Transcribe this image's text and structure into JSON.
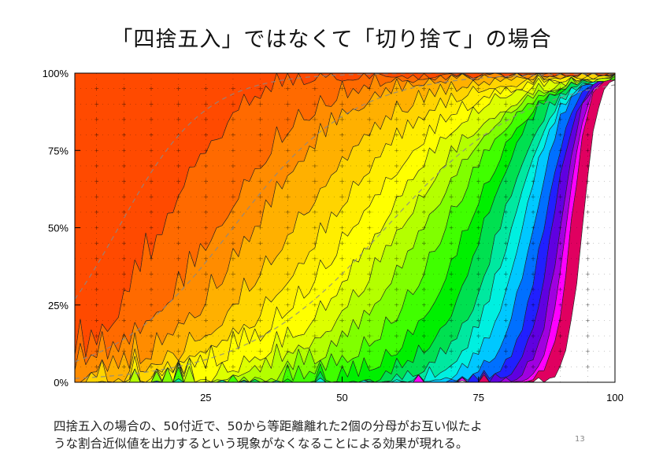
{
  "slide": {
    "title": "「四捨五入」ではなくて「切り捨て」の場合",
    "caption_line1": "四捨五入の場合の、50付近で、50から等距離離れた2個の分母がお互い似たよ",
    "caption_line2": "うな割合近似値を出力するという現象がなくなることによる効果が現れる。",
    "page_number": "13"
  },
  "chart_data": {
    "type": "area",
    "title": "",
    "xlabel": "",
    "ylabel": "",
    "x_ticks": [
      25,
      50,
      75,
      100
    ],
    "y_ticks": [
      "0%",
      "25%",
      "50%",
      "75%",
      "100%"
    ],
    "xlim": [
      1,
      100
    ],
    "ylim": [
      0,
      100
    ],
    "stacked": true,
    "band_colors": [
      "#ff4a00",
      "#ff6a00",
      "#ff8c00",
      "#ffb000",
      "#ffd400",
      "#ffee00",
      "#ffff00",
      "#ddff00",
      "#b4ff00",
      "#80ff00",
      "#40ff00",
      "#00f000",
      "#00e050",
      "#00e8a0",
      "#00f0e0",
      "#00c8ff",
      "#0070ff",
      "#2020ff",
      "#6000e0",
      "#a000e0",
      "#ff00ff",
      "#e00060",
      "#ffffff"
    ],
    "boundary_centers": [
      17,
      27,
      34,
      41,
      47,
      52,
      57,
      61,
      65,
      69,
      73,
      76,
      79,
      81,
      83,
      85,
      87,
      88.5,
      90,
      91,
      92,
      94
    ],
    "boundary_widths": [
      7,
      9,
      9,
      10,
      10,
      10,
      9,
      9,
      8,
      7,
      6,
      5,
      4.5,
      4,
      3.5,
      3,
      2.6,
      2.3,
      2,
      1.8,
      1.6,
      1.4
    ],
    "background": "#ffffff",
    "grid": "dotted",
    "legend": "none"
  }
}
